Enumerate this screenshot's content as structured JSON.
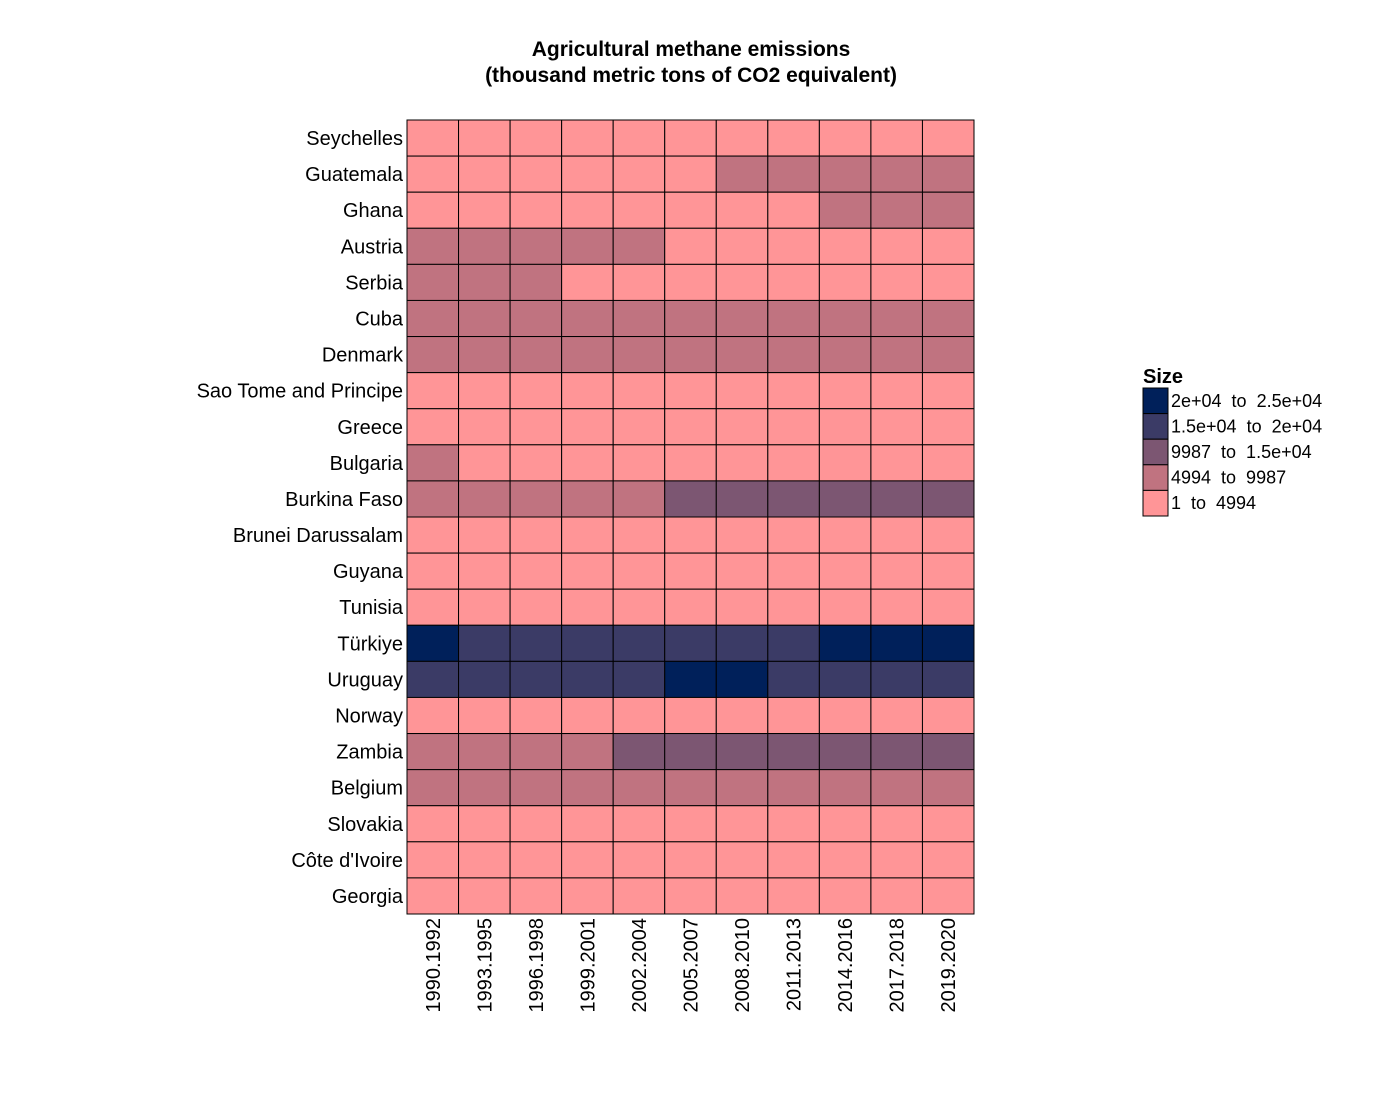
{
  "chart_data": {
    "type": "heatmap",
    "title": "Agricultural methane emissions",
    "subtitle": "(thousand metric tons of CO2 equivalent)",
    "xlabel": "",
    "ylabel": "",
    "legend_title": "Size",
    "legend_position": "right",
    "columns": [
      "1990.1992",
      "1993.1995",
      "1996.1998",
      "1999.2001",
      "2002.2004",
      "2005.2007",
      "2008.2010",
      "2011.2013",
      "2014.2016",
      "2017.2018",
      "2019.2020"
    ],
    "rows": [
      "Seychelles",
      "Guatemala",
      "Ghana",
      "Austria",
      "Serbia",
      "Cuba",
      "Denmark",
      "Sao Tome and Principe",
      "Greece",
      "Bulgaria",
      "Burkina Faso",
      "Brunei Darussalam",
      "Guyana",
      "Tunisia",
      "Türkiye",
      "Uruguay",
      "Norway",
      "Zambia",
      "Belgium",
      "Slovakia",
      "Côte d'Ivoire",
      "Georgia"
    ],
    "bins": [
      {
        "label": "2e+04  to  2.5e+04",
        "color": "#00205a"
      },
      {
        "label": "1.5e+04  to  2e+04",
        "color": "#3b3b66"
      },
      {
        "label": "9987  to  1.5e+04",
        "color": "#7c5672"
      },
      {
        "label": "4994  to  9987",
        "color": "#c07380"
      },
      {
        "label": "1  to  4994",
        "color": "#ff9597"
      }
    ],
    "bin_index_note": "0 = 2e+04 to 2.5e+04, 1 = 1.5e+04 to 2e+04, 2 = 9987 to 1.5e+04, 3 = 4994 to 9987, 4 = 1 to 4994",
    "cells": [
      [
        4,
        4,
        4,
        4,
        4,
        4,
        4,
        4,
        4,
        4,
        4
      ],
      [
        4,
        4,
        4,
        4,
        4,
        4,
        3,
        3,
        3,
        3,
        3
      ],
      [
        4,
        4,
        4,
        4,
        4,
        4,
        4,
        4,
        3,
        3,
        3
      ],
      [
        3,
        3,
        3,
        3,
        3,
        4,
        4,
        4,
        4,
        4,
        4
      ],
      [
        3,
        3,
        3,
        4,
        4,
        4,
        4,
        4,
        4,
        4,
        4
      ],
      [
        3,
        3,
        3,
        3,
        3,
        3,
        3,
        3,
        3,
        3,
        3
      ],
      [
        3,
        3,
        3,
        3,
        3,
        3,
        3,
        3,
        3,
        3,
        3
      ],
      [
        4,
        4,
        4,
        4,
        4,
        4,
        4,
        4,
        4,
        4,
        4
      ],
      [
        4,
        4,
        4,
        4,
        4,
        4,
        4,
        4,
        4,
        4,
        4
      ],
      [
        3,
        4,
        4,
        4,
        4,
        4,
        4,
        4,
        4,
        4,
        4
      ],
      [
        3,
        3,
        3,
        3,
        3,
        2,
        2,
        2,
        2,
        2,
        2
      ],
      [
        4,
        4,
        4,
        4,
        4,
        4,
        4,
        4,
        4,
        4,
        4
      ],
      [
        4,
        4,
        4,
        4,
        4,
        4,
        4,
        4,
        4,
        4,
        4
      ],
      [
        4,
        4,
        4,
        4,
        4,
        4,
        4,
        4,
        4,
        4,
        4
      ],
      [
        0,
        1,
        1,
        1,
        1,
        1,
        1,
        1,
        0,
        0,
        0
      ],
      [
        1,
        1,
        1,
        1,
        1,
        0,
        0,
        1,
        1,
        1,
        1
      ],
      [
        4,
        4,
        4,
        4,
        4,
        4,
        4,
        4,
        4,
        4,
        4
      ],
      [
        3,
        3,
        3,
        3,
        2,
        2,
        2,
        2,
        2,
        2,
        2
      ],
      [
        3,
        3,
        3,
        3,
        3,
        3,
        3,
        3,
        3,
        3,
        3
      ],
      [
        4,
        4,
        4,
        4,
        4,
        4,
        4,
        4,
        4,
        4,
        4
      ],
      [
        4,
        4,
        4,
        4,
        4,
        4,
        4,
        4,
        4,
        4,
        4
      ],
      [
        4,
        4,
        4,
        4,
        4,
        4,
        4,
        4,
        4,
        4,
        4
      ]
    ]
  }
}
